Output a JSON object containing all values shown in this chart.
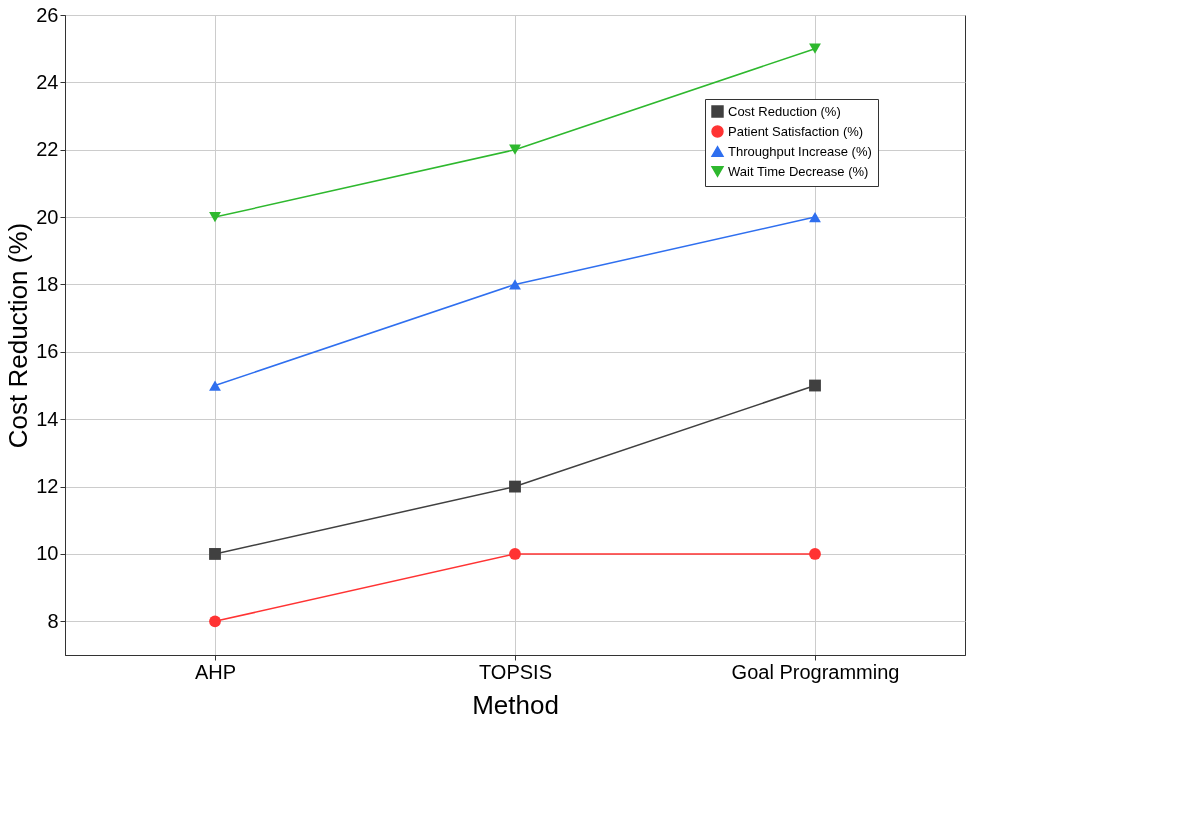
{
  "chart_data": {
    "type": "line",
    "xlabel": "Method",
    "ylabel": "Cost Reduction (%)",
    "categories": [
      "AHP",
      "TOPSIS",
      "Goal Programming"
    ],
    "series": [
      {
        "name": "Cost Reduction (%)",
        "color": "#404040",
        "marker": "square",
        "values": [
          10,
          12,
          15
        ]
      },
      {
        "name": "Patient Satisfaction (%)",
        "color": "#ff3333",
        "marker": "circle",
        "values": [
          8,
          10,
          10
        ]
      },
      {
        "name": "Throughput Increase (%)",
        "color": "#2f6fef",
        "marker": "triangle",
        "values": [
          15,
          18,
          20
        ]
      },
      {
        "name": "Wait Time Decrease (%)",
        "color": "#2eb82e",
        "marker": "triangle-down",
        "values": [
          20,
          22,
          25
        ]
      }
    ],
    "ylim": [
      7,
      26
    ],
    "yticks": [
      8,
      10,
      12,
      14,
      16,
      18,
      20,
      22,
      24,
      26
    ],
    "grid": true,
    "legend": "top right",
    "line_style": "solid"
  }
}
